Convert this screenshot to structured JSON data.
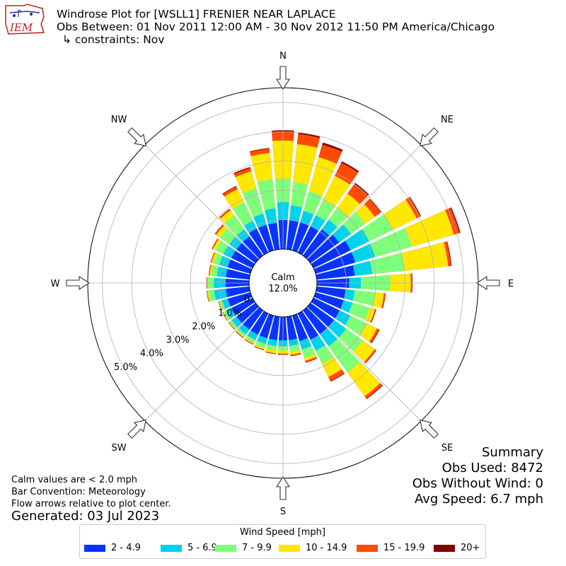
{
  "header": {
    "logo_text": "IEM",
    "title_line1": "Windrose Plot for [WSLL1] FRENIER NEAR LAPLACE",
    "title_line2": "Obs Between: 01 Nov 2011 12:00 AM - 30 Nov 2012 11:50 PM America/Chicago",
    "title_line3": "↳ constraints: Nov"
  },
  "summary": {
    "title": "Summary",
    "obs_used": "Obs Used: 8472",
    "obs_without_wind": "Obs Without Wind: 0",
    "avg_speed": "Avg Speed: 6.7 mph"
  },
  "notes": {
    "calm_note": "Calm values are < 2.0 mph",
    "bar_convention": "Bar Convention: Meteorology",
    "flow_note": "Flow arrows relative to plot center.",
    "generated": "Generated: 03 Jul 2023"
  },
  "chart_data": {
    "type": "windrose",
    "calm": {
      "label": "Calm",
      "value": "12.0%"
    },
    "directions_deg": [
      0,
      10,
      20,
      30,
      40,
      50,
      60,
      70,
      80,
      90,
      100,
      110,
      120,
      130,
      140,
      150,
      160,
      170,
      180,
      190,
      200,
      210,
      220,
      230,
      240,
      250,
      260,
      270,
      280,
      290,
      300,
      310,
      320,
      330,
      340,
      350
    ],
    "compass_labels": [
      {
        "label": "N",
        "deg": 0
      },
      {
        "label": "NE",
        "deg": 45
      },
      {
        "label": "E",
        "deg": 90
      },
      {
        "label": "SE",
        "deg": 135
      },
      {
        "label": "S",
        "deg": 180
      },
      {
        "label": "SW",
        "deg": 225
      },
      {
        "label": "W",
        "deg": 270
      },
      {
        "label": "NW",
        "deg": 315
      }
    ],
    "radial_ticks": [
      {
        "value": 0.0,
        "label": "0.0%"
      },
      {
        "value": 1.0,
        "label": "1.0%"
      },
      {
        "value": 2.0,
        "label": "2.0%"
      },
      {
        "value": 3.0,
        "label": "3.0%"
      },
      {
        "value": 4.0,
        "label": "4.0%"
      },
      {
        "value": 5.0,
        "label": "5.0%"
      }
    ],
    "rmax": 5.5,
    "legend_title": "Wind Speed [mph]",
    "speed_bins": [
      {
        "label": "2 - 4.9",
        "color": "#0a32ff"
      },
      {
        "label": "5 - 6.9",
        "color": "#00d2ed"
      },
      {
        "label": "7 - 9.9",
        "color": "#7dff7a"
      },
      {
        "label": "10 - 14.9",
        "color": "#ffe800"
      },
      {
        "label": "15 - 19.9",
        "color": "#ff4a00"
      },
      {
        "label": "20+",
        "color": "#7f0000"
      }
    ],
    "cumulative_by_direction": [
      [
        1.0,
        1.6,
        2.4,
        3.7,
        4.0,
        4.05
      ],
      [
        1.0,
        1.5,
        2.3,
        3.6,
        3.95,
        4.0
      ],
      [
        1.0,
        1.4,
        2.1,
        3.3,
        3.75,
        3.82
      ],
      [
        1.0,
        1.4,
        2.0,
        2.9,
        3.4,
        3.45
      ],
      [
        1.1,
        1.5,
        2.0,
        2.6,
        3.0,
        3.05
      ],
      [
        1.2,
        1.7,
        2.3,
        2.7,
        2.95,
        2.97
      ],
      [
        1.4,
        2.1,
        3.0,
        3.9,
        4.05,
        4.07
      ],
      [
        1.4,
        2.1,
        3.4,
        4.9,
        5.1,
        5.13
      ],
      [
        1.3,
        1.9,
        3.0,
        4.5,
        4.6,
        4.62
      ],
      [
        1.1,
        1.5,
        2.5,
        3.2,
        3.25,
        3.26
      ],
      [
        1.0,
        1.3,
        2.0,
        2.3,
        2.35,
        2.36
      ],
      [
        1.0,
        1.3,
        1.9,
        2.1,
        2.14,
        2.15
      ],
      [
        1.0,
        1.4,
        2.0,
        2.4,
        2.48,
        2.5
      ],
      [
        1.0,
        1.5,
        2.2,
        2.7,
        2.76,
        2.77
      ],
      [
        1.0,
        1.5,
        2.6,
        3.6,
        3.7,
        3.72
      ],
      [
        1.0,
        1.4,
        1.9,
        2.4,
        2.56,
        2.58
      ],
      [
        0.9,
        1.2,
        1.5,
        1.6,
        1.66,
        1.67
      ],
      [
        0.8,
        1.0,
        1.2,
        1.3,
        1.34,
        1.35
      ],
      [
        0.8,
        1.0,
        1.15,
        1.25,
        1.28,
        1.29
      ],
      [
        0.8,
        1.0,
        1.15,
        1.25,
        1.27,
        1.28
      ],
      [
        0.8,
        1.0,
        1.15,
        1.2,
        1.22,
        1.23
      ],
      [
        0.8,
        1.0,
        1.1,
        1.15,
        1.17,
        1.18
      ],
      [
        0.8,
        1.0,
        1.1,
        1.13,
        1.15,
        1.16
      ],
      [
        0.8,
        1.0,
        1.1,
        1.12,
        1.13,
        1.14
      ],
      [
        0.8,
        1.0,
        1.1,
        1.12,
        1.13,
        1.14
      ],
      [
        0.8,
        1.0,
        1.1,
        1.12,
        1.13,
        1.14
      ],
      [
        0.8,
        1.2,
        1.4,
        1.44,
        1.45,
        1.46
      ],
      [
        0.8,
        1.2,
        1.4,
        1.43,
        1.44,
        1.45
      ],
      [
        0.8,
        1.1,
        1.3,
        1.36,
        1.38,
        1.39
      ],
      [
        0.8,
        1.1,
        1.3,
        1.38,
        1.4,
        1.41
      ],
      [
        0.8,
        1.1,
        1.4,
        1.5,
        1.53,
        1.54
      ],
      [
        0.8,
        1.1,
        1.5,
        1.65,
        1.7,
        1.71
      ],
      [
        0.8,
        1.1,
        1.7,
        1.9,
        1.95,
        1.96
      ],
      [
        0.9,
        1.2,
        1.9,
        2.4,
        2.5,
        2.52
      ],
      [
        0.9,
        1.3,
        2.2,
        2.8,
        2.92,
        2.95
      ],
      [
        0.9,
        1.4,
        2.4,
        3.3,
        3.45,
        3.47
      ]
    ]
  }
}
